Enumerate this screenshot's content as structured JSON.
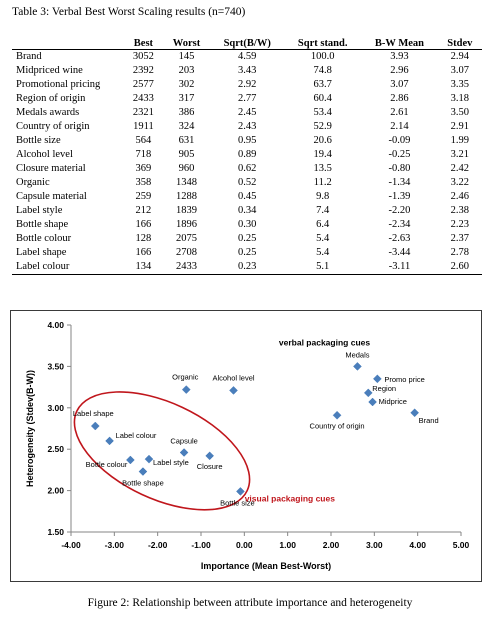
{
  "table": {
    "caption": "Table 3: Verbal Best Worst Scaling results (n=740)",
    "headers": [
      "",
      "Best",
      "Worst",
      "Sqrt(B/W)",
      "Sqrt stand.",
      "B-W Mean",
      "Stdev"
    ],
    "rows": [
      [
        "Brand",
        "3052",
        "145",
        "4.59",
        "100.0",
        "3.93",
        "2.94"
      ],
      [
        "Midpriced wine",
        "2392",
        "203",
        "3.43",
        "74.8",
        "2.96",
        "3.07"
      ],
      [
        "Promotional pricing",
        "2577",
        "302",
        "2.92",
        "63.7",
        "3.07",
        "3.35"
      ],
      [
        "Region of origin",
        "2433",
        "317",
        "2.77",
        "60.4",
        "2.86",
        "3.18"
      ],
      [
        "Medals awards",
        "2321",
        "386",
        "2.45",
        "53.4",
        "2.61",
        "3.50"
      ],
      [
        "Country of origin",
        "1911",
        "324",
        "2.43",
        "52.9",
        "2.14",
        "2.91"
      ],
      [
        "Bottle size",
        "564",
        "631",
        "0.95",
        "20.6",
        "-0.09",
        "1.99"
      ],
      [
        "Alcohol level",
        "718",
        "905",
        "0.89",
        "19.4",
        "-0.25",
        "3.21"
      ],
      [
        "Closure material",
        "369",
        "960",
        "0.62",
        "13.5",
        "-0.80",
        "2.42"
      ],
      [
        "Organic",
        "358",
        "1348",
        "0.52",
        "11.2",
        "-1.34",
        "3.22"
      ],
      [
        "Capsule material",
        "259",
        "1288",
        "0.45",
        "9.8",
        "-1.39",
        "2.46"
      ],
      [
        "Label style",
        "212",
        "1839",
        "0.34",
        "7.4",
        "-2.20",
        "2.38"
      ],
      [
        "Bottle shape",
        "166",
        "1896",
        "0.30",
        "6.4",
        "-2.34",
        "2.23"
      ],
      [
        "Bottle colour",
        "128",
        "2075",
        "0.25",
        "5.4",
        "-2.63",
        "2.37"
      ],
      [
        "Label shape",
        "166",
        "2708",
        "0.25",
        "5.4",
        "-3.44",
        "2.78"
      ],
      [
        "Label colour",
        "134",
        "2433",
        "0.23",
        "5.1",
        "-3.11",
        "2.60"
      ]
    ]
  },
  "chart_data": {
    "type": "scatter",
    "xlabel": "Importance (Mean Best-Worst)",
    "ylabel": "Heterogeneity (Stdev(B-W))",
    "xlim": [
      -4.0,
      5.0
    ],
    "ylim": [
      1.5,
      4.0
    ],
    "xticks": [
      "-4.00",
      "-3.00",
      "-2.00",
      "-1.00",
      "0.00",
      "1.00",
      "2.00",
      "3.00",
      "4.00",
      "5.00"
    ],
    "yticks": [
      "1.50",
      "2.00",
      "2.50",
      "3.00",
      "3.50",
      "4.00"
    ],
    "grid": false,
    "marker_color": "#4a7ebb",
    "annotations": [
      {
        "text": "verbal packaging cues",
        "color": "#000000"
      },
      {
        "text": "visual packaging cues",
        "color": "#c0161c"
      }
    ],
    "ellipse_color": "#c0161c",
    "points": [
      {
        "label": "Brand",
        "x": 3.93,
        "y": 2.94
      },
      {
        "label": "Midprice",
        "x": 2.96,
        "y": 3.07
      },
      {
        "label": "Promo price",
        "x": 3.07,
        "y": 3.35
      },
      {
        "label": "Region",
        "x": 2.86,
        "y": 3.18
      },
      {
        "label": "Medals",
        "x": 2.61,
        "y": 3.5
      },
      {
        "label": "Country of origin",
        "x": 2.14,
        "y": 2.91
      },
      {
        "label": "Bottle size",
        "x": -0.09,
        "y": 1.99
      },
      {
        "label": "Alcohol level",
        "x": -0.25,
        "y": 3.21
      },
      {
        "label": "Closure",
        "x": -0.8,
        "y": 2.42
      },
      {
        "label": "Organic",
        "x": -1.34,
        "y": 3.22
      },
      {
        "label": "Capsule",
        "x": -1.39,
        "y": 2.46
      },
      {
        "label": "Label style",
        "x": -2.2,
        "y": 2.38
      },
      {
        "label": "Bottle shape",
        "x": -2.34,
        "y": 2.23
      },
      {
        "label": "Bottle colour",
        "x": -2.63,
        "y": 2.37
      },
      {
        "label": "Label shape",
        "x": -3.44,
        "y": 2.78
      },
      {
        "label": "Label colour",
        "x": -3.11,
        "y": 2.6
      }
    ]
  },
  "figure_caption": "Figure 2: Relationship between attribute importance and heterogeneity"
}
